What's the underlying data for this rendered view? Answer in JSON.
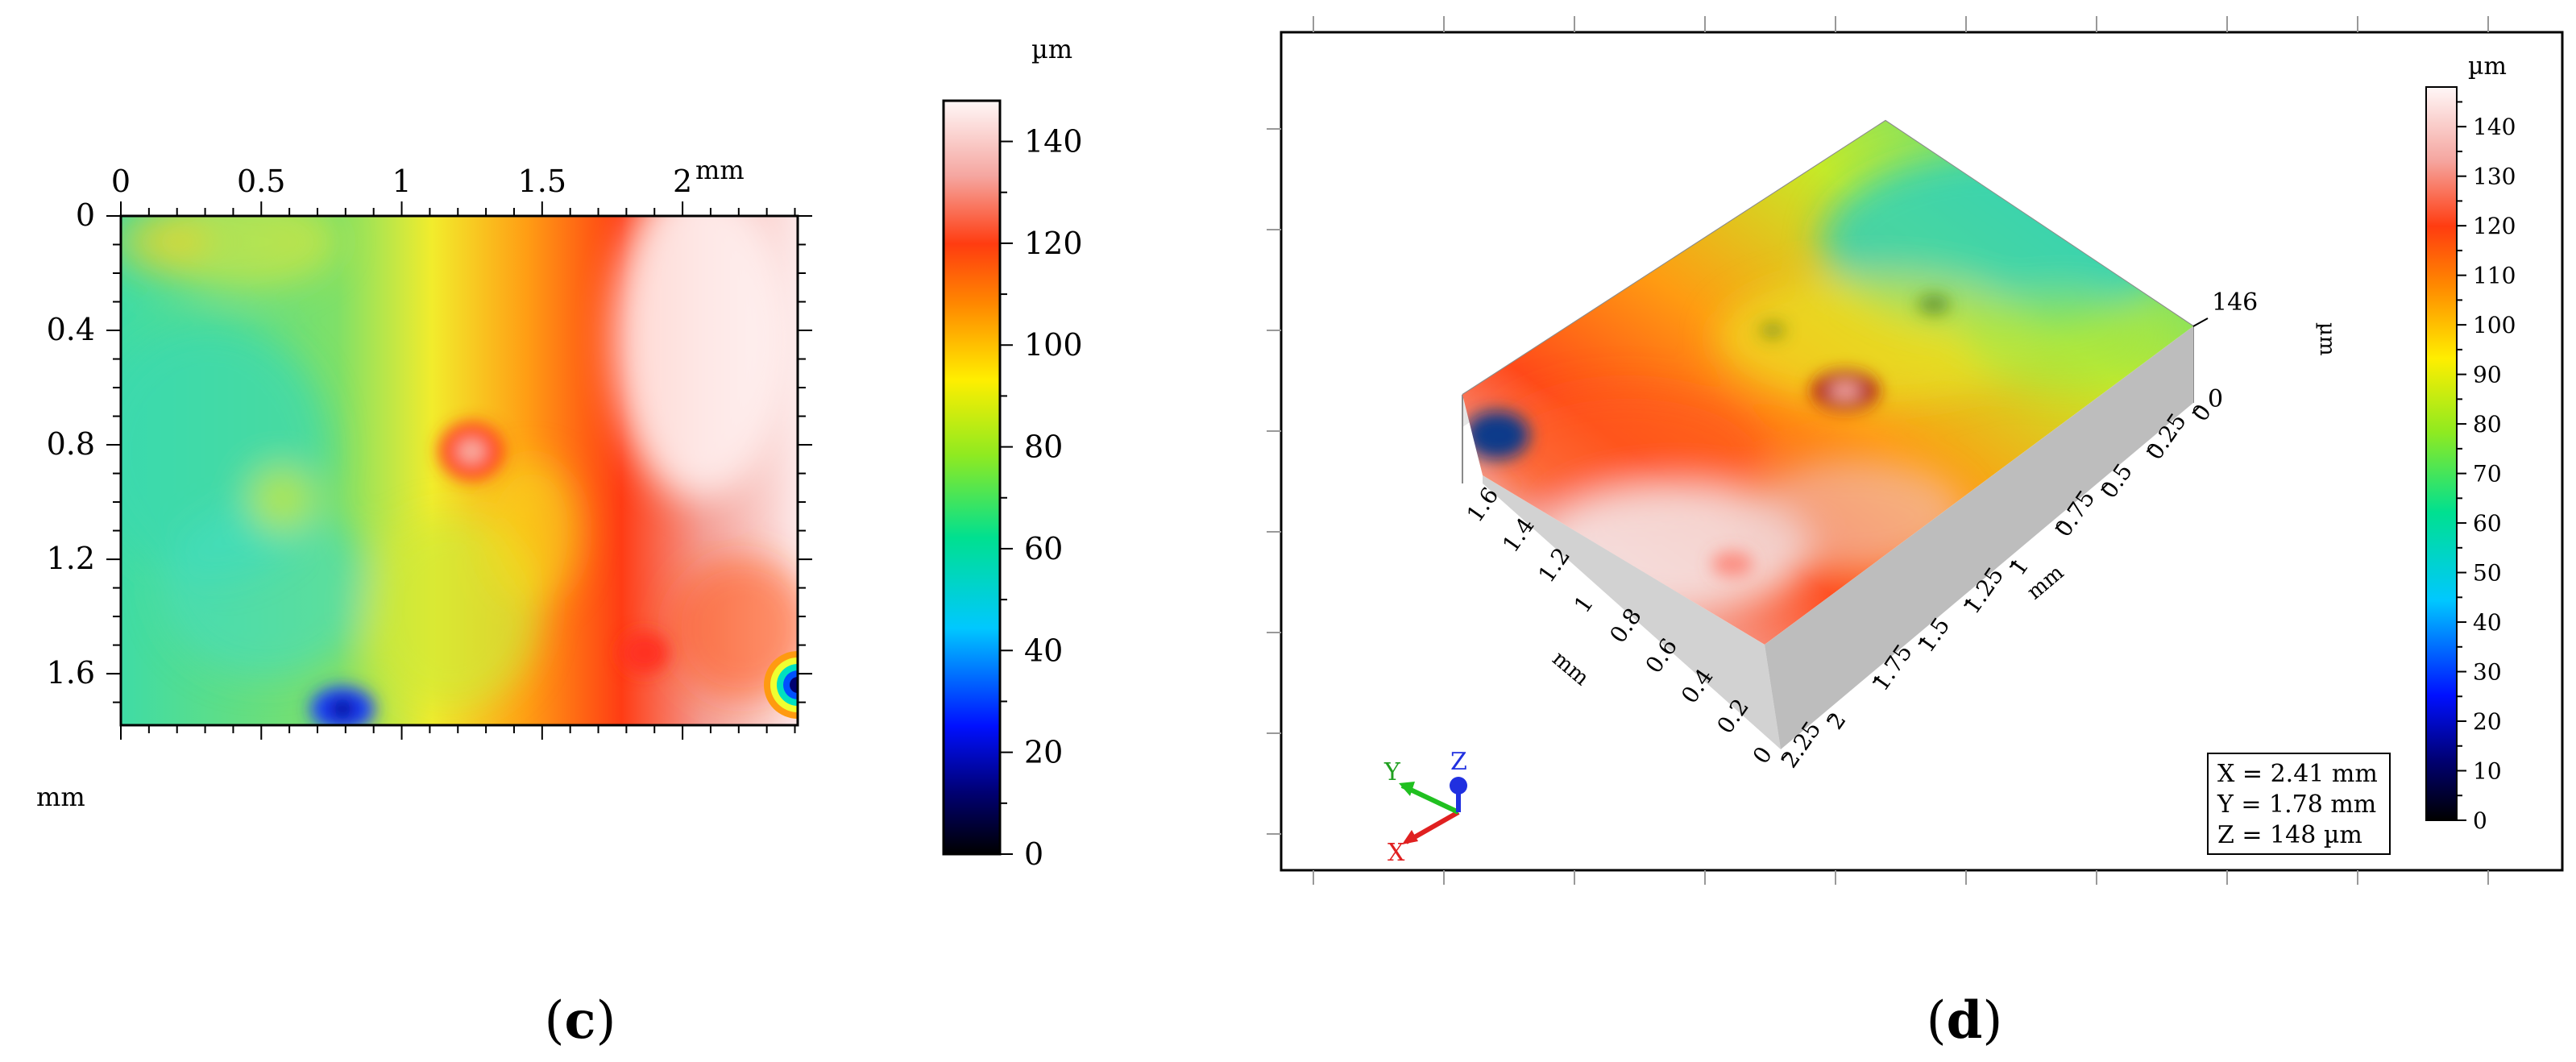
{
  "panels": {
    "c": {
      "caption_letter": "c",
      "chart_data": {
        "type": "heatmap",
        "title": "",
        "xlabel": "mm",
        "ylabel": "mm",
        "x_ticks": [
          "0",
          "0.5",
          "1",
          "1.5",
          "2"
        ],
        "y_ticks": [
          "0",
          "0.4",
          "0.8",
          "1.2",
          "1.6"
        ],
        "x_tick_values": [
          0,
          0.5,
          1,
          1.5,
          2
        ],
        "y_tick_values": [
          0,
          0.4,
          0.8,
          1.2,
          1.6
        ],
        "xlim": [
          0,
          2.41
        ],
        "ylim": [
          0,
          1.78
        ],
        "colorbar": {
          "unit": "µm",
          "ticks": [
            "0",
            "20",
            "40",
            "60",
            "80",
            "100",
            "120",
            "140"
          ],
          "range": [
            0,
            148
          ]
        },
        "features": [
          {
            "x": 1.25,
            "y": 0.82,
            "value": 128
          },
          {
            "x": 0.8,
            "y": 1.73,
            "value": 32
          },
          {
            "x": 2.37,
            "y": 1.65,
            "value": 22
          },
          {
            "x": 2.05,
            "y": 0.35,
            "value": 140
          }
        ]
      }
    },
    "d": {
      "caption_letter": "d",
      "chart_data": {
        "type": "surface3d",
        "title": "",
        "x_axis_label": "mm",
        "y_axis_label": "mm",
        "z_axis_label": "µm",
        "x_ticks": [
          "2.25",
          "2",
          "1.75",
          "1.5",
          "1.25",
          "1",
          "0.75",
          "0.5",
          "0.25",
          "0"
        ],
        "y_ticks": [
          "1.6",
          "1.4",
          "1.2",
          "1",
          "0.8",
          "0.6",
          "0.4",
          "0.2",
          "0"
        ],
        "z_ticks": [
          "146",
          "0"
        ],
        "colorbar": {
          "unit": "µm",
          "ticks": [
            "0",
            "10",
            "20",
            "30",
            "40",
            "50",
            "60",
            "70",
            "80",
            "90",
            "100",
            "110",
            "120",
            "130",
            "140"
          ],
          "range": [
            0,
            148
          ]
        },
        "readout": {
          "x": "X = 2.41 mm",
          "y": "Y = 1.78 mm",
          "z": "Z = 148 µm"
        },
        "triad_labels": [
          "X",
          "Y",
          "Z"
        ]
      }
    }
  }
}
